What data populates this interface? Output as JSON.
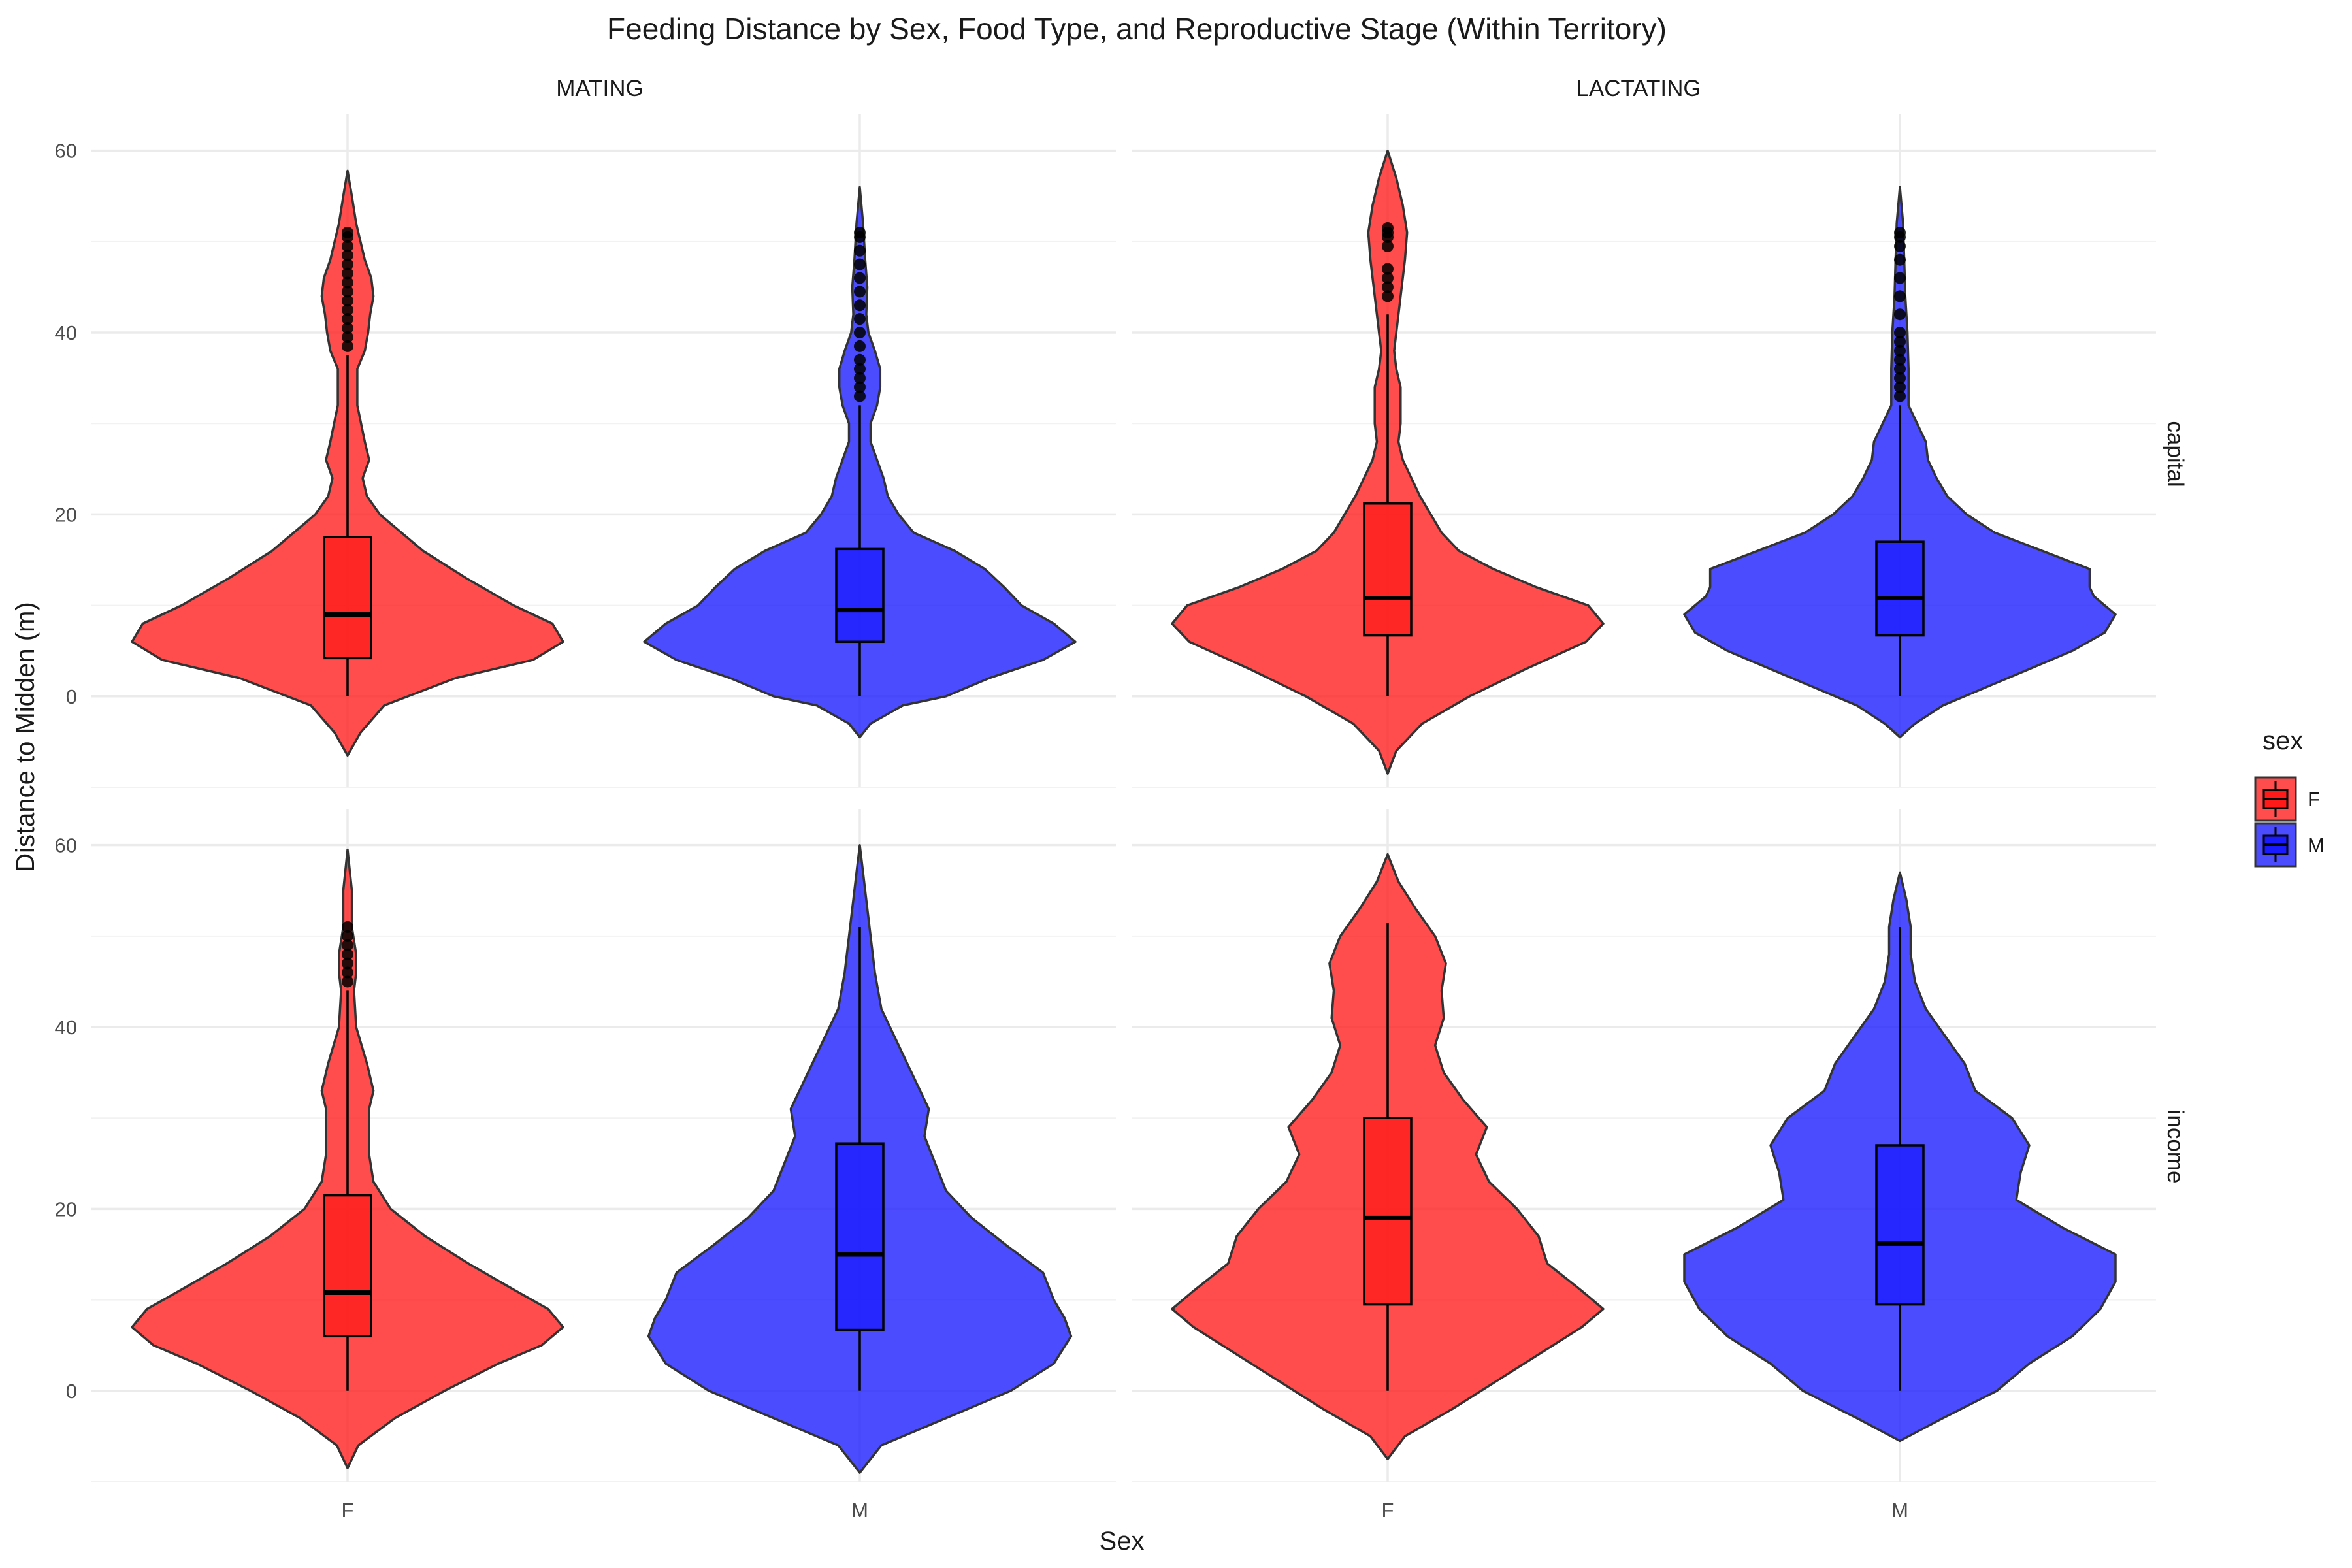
{
  "chart_data": {
    "type": "violin",
    "title": "Feeding Distance by Sex, Food Type, and Reproductive Stage (Within Territory)",
    "xlabel": "Sex",
    "ylabel": "Distance to Midden (m)",
    "categories": [
      "F",
      "M"
    ],
    "column_facets": [
      "MATING",
      "LACTATING"
    ],
    "row_facets": [
      "capital",
      "income"
    ],
    "y_ticks": [
      0,
      20,
      40,
      60
    ],
    "ylim": [
      -10,
      64
    ],
    "legend": {
      "title": "sex",
      "position": "right",
      "entries": [
        {
          "label": "F",
          "color": "#ff1a1a"
        },
        {
          "label": "M",
          "color": "#1a1aff"
        }
      ]
    },
    "panels": [
      {
        "stage": "MATING",
        "food": "capital",
        "groups": [
          {
            "sex": "F",
            "color": "#ff1a1a",
            "box": {
              "min": 0,
              "q1": 4.2,
              "median": 9.0,
              "q3": 17.5,
              "max": 37.5
            },
            "outliers": [
              38.5,
              39.5,
              40.5,
              41.5,
              42.5,
              43.5,
              44.5,
              45.5,
              46.5,
              47.5,
              48.5,
              49.5,
              50.5,
              51.0
            ],
            "violin": [
              [
                -6.5,
                0
              ],
              [
                -4,
                0.06
              ],
              [
                -1,
                0.17
              ],
              [
                2,
                0.5
              ],
              [
                4,
                0.86
              ],
              [
                6,
                1.0
              ],
              [
                8,
                0.95
              ],
              [
                10,
                0.77
              ],
              [
                13,
                0.55
              ],
              [
                16,
                0.35
              ],
              [
                18,
                0.25
              ],
              [
                20,
                0.15
              ],
              [
                22,
                0.09
              ],
              [
                24,
                0.07
              ],
              [
                26,
                0.1
              ],
              [
                28,
                0.08
              ],
              [
                32,
                0.045
              ],
              [
                36,
                0.045
              ],
              [
                38,
                0.08
              ],
              [
                40,
                0.095
              ],
              [
                42,
                0.105
              ],
              [
                44,
                0.12
              ],
              [
                46,
                0.11
              ],
              [
                48,
                0.08
              ],
              [
                50,
                0.06
              ],
              [
                52,
                0.04
              ],
              [
                55,
                0.02
              ],
              [
                57.8,
                0
              ]
            ]
          },
          {
            "sex": "M",
            "color": "#1a1aff",
            "box": {
              "min": 0,
              "q1": 6.0,
              "median": 9.5,
              "q3": 16.2,
              "max": 32.0
            },
            "outliers": [
              33.0,
              34.0,
              35.0,
              36.0,
              37.0,
              38.5,
              40.0,
              41.5,
              43.0,
              44.5,
              46.0,
              47.5,
              49.0,
              50.5,
              51.0
            ],
            "violin": [
              [
                -4.5,
                0
              ],
              [
                -3,
                0.05
              ],
              [
                -1,
                0.2
              ],
              [
                0,
                0.4
              ],
              [
                2,
                0.6
              ],
              [
                4,
                0.85
              ],
              [
                6,
                1.0
              ],
              [
                8,
                0.9
              ],
              [
                10,
                0.75
              ],
              [
                12,
                0.67
              ],
              [
                14,
                0.58
              ],
              [
                16,
                0.44
              ],
              [
                18,
                0.25
              ],
              [
                20,
                0.18
              ],
              [
                22,
                0.13
              ],
              [
                24,
                0.11
              ],
              [
                26,
                0.08
              ],
              [
                28,
                0.05
              ],
              [
                30,
                0.05
              ],
              [
                32,
                0.08
              ],
              [
                34,
                0.095
              ],
              [
                36,
                0.095
              ],
              [
                38,
                0.07
              ],
              [
                40,
                0.04
              ],
              [
                42,
                0.03
              ],
              [
                45,
                0.035
              ],
              [
                48,
                0.025
              ],
              [
                52,
                0.015
              ],
              [
                56,
                0
              ]
            ]
          }
        ]
      },
      {
        "stage": "LACTATING",
        "food": "capital",
        "groups": [
          {
            "sex": "F",
            "color": "#ff1a1a",
            "box": {
              "min": 0,
              "q1": 6.7,
              "median": 10.8,
              "q3": 21.2,
              "max": 42.0
            },
            "outliers": [
              44.0,
              45.0,
              46.0,
              47.0,
              49.5,
              50.5,
              51.0,
              51.5
            ],
            "violin": [
              [
                -8.5,
                0
              ],
              [
                -6,
                0.04
              ],
              [
                -3,
                0.16
              ],
              [
                0,
                0.38
              ],
              [
                3,
                0.64
              ],
              [
                6,
                0.92
              ],
              [
                8,
                1.0
              ],
              [
                10,
                0.93
              ],
              [
                12,
                0.69
              ],
              [
                14,
                0.49
              ],
              [
                16,
                0.33
              ],
              [
                18,
                0.25
              ],
              [
                20,
                0.2
              ],
              [
                22,
                0.15
              ],
              [
                24,
                0.11
              ],
              [
                26,
                0.07
              ],
              [
                28,
                0.05
              ],
              [
                30,
                0.06
              ],
              [
                34,
                0.06
              ],
              [
                36,
                0.04
              ],
              [
                38,
                0.03
              ],
              [
                40,
                0.04
              ],
              [
                44,
                0.06
              ],
              [
                48,
                0.08
              ],
              [
                51,
                0.09
              ],
              [
                54,
                0.07
              ],
              [
                57,
                0.04
              ],
              [
                60,
                0
              ]
            ]
          },
          {
            "sex": "M",
            "color": "#1a1aff",
            "box": {
              "min": 0,
              "q1": 6.7,
              "median": 10.8,
              "q3": 17.0,
              "max": 32.0
            },
            "outliers": [
              33.0,
              34.0,
              35.0,
              36.0,
              37.0,
              38.0,
              39.0,
              40.0,
              42.0,
              44.0,
              46.0,
              48.0,
              49.5,
              50.5,
              51.0
            ],
            "violin": [
              [
                -4.5,
                0
              ],
              [
                -3,
                0.07
              ],
              [
                -1,
                0.2
              ],
              [
                1,
                0.4
              ],
              [
                3,
                0.6
              ],
              [
                5,
                0.8
              ],
              [
                7,
                0.95
              ],
              [
                9,
                1.0
              ],
              [
                11,
                0.9
              ],
              [
                12,
                0.88
              ],
              [
                14,
                0.88
              ],
              [
                16,
                0.66
              ],
              [
                18,
                0.44
              ],
              [
                20,
                0.31
              ],
              [
                22,
                0.22
              ],
              [
                24,
                0.17
              ],
              [
                26,
                0.13
              ],
              [
                28,
                0.12
              ],
              [
                30,
                0.08
              ],
              [
                32,
                0.04
              ],
              [
                36,
                0.04
              ],
              [
                40,
                0.035
              ],
              [
                44,
                0.025
              ],
              [
                48,
                0.02
              ],
              [
                52,
                0.015
              ],
              [
                56,
                0
              ]
            ]
          }
        ]
      },
      {
        "stage": "MATING",
        "food": "income",
        "groups": [
          {
            "sex": "F",
            "color": "#ff1a1a",
            "box": {
              "min": 0,
              "q1": 6.0,
              "median": 10.8,
              "q3": 21.5,
              "max": 44.0
            },
            "outliers": [
              45.0,
              46.0,
              47.0,
              48.0,
              49.0,
              50.0,
              51.0
            ],
            "violin": [
              [
                -8.5,
                0
              ],
              [
                -6,
                0.05
              ],
              [
                -3,
                0.22
              ],
              [
                0,
                0.45
              ],
              [
                3,
                0.7
              ],
              [
                5,
                0.9
              ],
              [
                7,
                1.0
              ],
              [
                9,
                0.93
              ],
              [
                11,
                0.78
              ],
              [
                14,
                0.56
              ],
              [
                17,
                0.36
              ],
              [
                20,
                0.2
              ],
              [
                23,
                0.12
              ],
              [
                26,
                0.1
              ],
              [
                28,
                0.1
              ],
              [
                31,
                0.1
              ],
              [
                33,
                0.12
              ],
              [
                36,
                0.09
              ],
              [
                40,
                0.04
              ],
              [
                44,
                0.03
              ],
              [
                46,
                0.04
              ],
              [
                48,
                0.04
              ],
              [
                51,
                0.02
              ],
              [
                55,
                0.02
              ],
              [
                59.5,
                0
              ]
            ]
          },
          {
            "sex": "M",
            "color": "#1a1aff",
            "box": {
              "min": 0,
              "q1": 6.7,
              "median": 15.0,
              "q3": 27.2,
              "max": 51.0
            },
            "outliers": [],
            "violin": [
              [
                -9,
                0
              ],
              [
                -6,
                0.1
              ],
              [
                -3,
                0.4
              ],
              [
                0,
                0.7
              ],
              [
                3,
                0.9
              ],
              [
                6,
                0.98
              ],
              [
                8,
                0.95
              ],
              [
                10,
                0.9
              ],
              [
                13,
                0.85
              ],
              [
                16,
                0.68
              ],
              [
                19,
                0.52
              ],
              [
                22,
                0.4
              ],
              [
                25,
                0.35
              ],
              [
                28,
                0.3
              ],
              [
                31,
                0.32
              ],
              [
                34,
                0.26
              ],
              [
                38,
                0.18
              ],
              [
                42,
                0.1
              ],
              [
                46,
                0.07
              ],
              [
                50,
                0.05
              ],
              [
                54,
                0.03
              ],
              [
                57,
                0.015
              ],
              [
                60,
                0
              ]
            ]
          }
        ]
      },
      {
        "stage": "LACTATING",
        "food": "income",
        "groups": [
          {
            "sex": "F",
            "color": "#ff1a1a",
            "box": {
              "min": 0,
              "q1": 9.5,
              "median": 19.0,
              "q3": 30.0,
              "max": 51.5
            },
            "outliers": [],
            "violin": [
              [
                -7.5,
                0
              ],
              [
                -5,
                0.08
              ],
              [
                -2,
                0.3
              ],
              [
                1,
                0.5
              ],
              [
                4,
                0.7
              ],
              [
                7,
                0.9
              ],
              [
                9,
                1.0
              ],
              [
                11,
                0.9
              ],
              [
                14,
                0.74
              ],
              [
                17,
                0.7
              ],
              [
                20,
                0.6
              ],
              [
                23,
                0.47
              ],
              [
                26,
                0.41
              ],
              [
                29,
                0.46
              ],
              [
                32,
                0.35
              ],
              [
                35,
                0.26
              ],
              [
                38,
                0.22
              ],
              [
                41,
                0.26
              ],
              [
                44,
                0.25
              ],
              [
                47,
                0.27
              ],
              [
                50,
                0.22
              ],
              [
                53,
                0.13
              ],
              [
                56,
                0.05
              ],
              [
                59,
                0
              ]
            ]
          },
          {
            "sex": "M",
            "color": "#1a1aff",
            "box": {
              "min": 0,
              "q1": 9.5,
              "median": 16.2,
              "q3": 27.0,
              "max": 51.0
            },
            "outliers": [],
            "violin": [
              [
                -5.5,
                0
              ],
              [
                -3,
                0.2
              ],
              [
                0,
                0.45
              ],
              [
                3,
                0.6
              ],
              [
                6,
                0.8
              ],
              [
                9,
                0.93
              ],
              [
                12,
                1.0
              ],
              [
                15,
                1.0
              ],
              [
                18,
                0.75
              ],
              [
                21,
                0.54
              ],
              [
                24,
                0.56
              ],
              [
                27,
                0.6
              ],
              [
                30,
                0.52
              ],
              [
                33,
                0.35
              ],
              [
                36,
                0.3
              ],
              [
                39,
                0.21
              ],
              [
                42,
                0.12
              ],
              [
                45,
                0.07
              ],
              [
                48,
                0.05
              ],
              [
                51,
                0.05
              ],
              [
                54,
                0.03
              ],
              [
                57,
                0
              ]
            ]
          }
        ]
      }
    ]
  }
}
